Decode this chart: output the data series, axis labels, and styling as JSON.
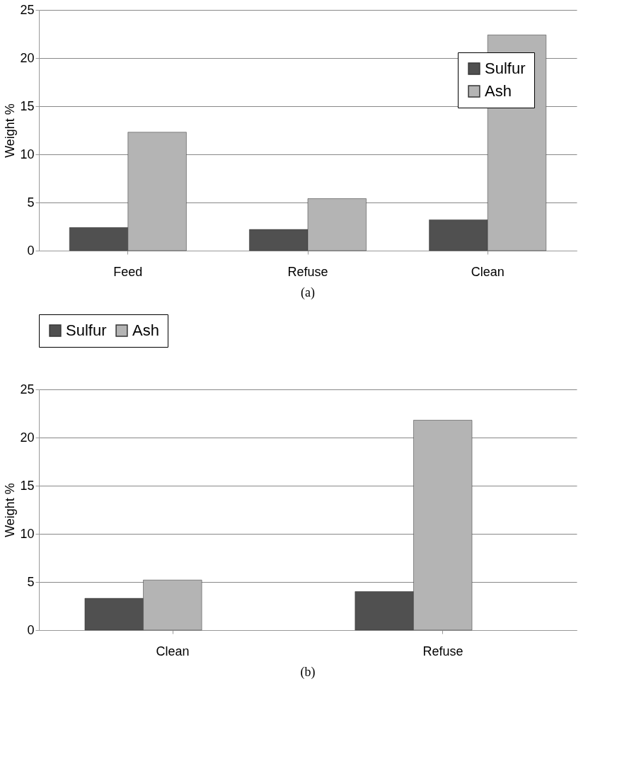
{
  "chart_data": [
    {
      "type": "bar",
      "categories": [
        "Feed",
        "Refuse",
        "Clean"
      ],
      "ylabel": "Weight %",
      "ylim": [
        0,
        25
      ],
      "yticks": [
        0,
        5,
        10,
        15,
        20,
        25
      ],
      "grid": "y",
      "legend": "top right",
      "annotations": [
        "(a)"
      ],
      "series": [
        {
          "name": "Sulfur",
          "color": "#505050",
          "values": [
            2.4,
            2.2,
            3.2
          ]
        },
        {
          "name": "Ash",
          "color": "#b4b4b4",
          "values": [
            12.3,
            5.4,
            22.4
          ]
        }
      ]
    },
    {
      "type": "bar",
      "categories": [
        "Clean",
        "Refuse"
      ],
      "ylabel": "Weight %",
      "ylim": [
        0,
        25
      ],
      "yticks": [
        0,
        5,
        10,
        15,
        20,
        25
      ],
      "grid": "y",
      "legend": "top",
      "annotations": [
        "(b)"
      ],
      "series": [
        {
          "name": "Sulfur",
          "color": "#505050",
          "values": [
            3.3,
            4.0
          ]
        },
        {
          "name": "Ash",
          "color": "#b4b4b4",
          "values": [
            5.2,
            21.8
          ]
        }
      ]
    }
  ]
}
